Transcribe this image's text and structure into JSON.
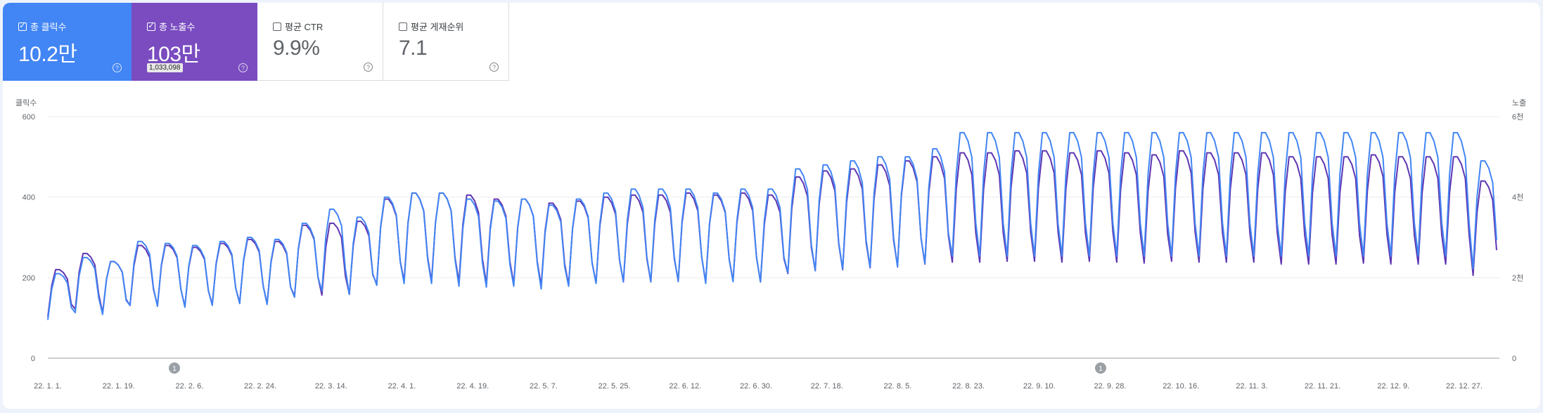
{
  "metrics": [
    {
      "label": "총 클릭수",
      "value": "10.2만",
      "checked": true
    },
    {
      "label": "총 노출수",
      "value": "103만",
      "tooltip": "1,033,098",
      "checked": true
    },
    {
      "label": "평균 CTR",
      "value": "9.9%",
      "checked": false
    },
    {
      "label": "평균 게재순위",
      "value": "7.1",
      "checked": false
    }
  ],
  "help_glyph": "?",
  "check_glyph": "✓",
  "colors": {
    "clicks": "#4285f4",
    "impressions": "#5e35b1",
    "clicks_card": "#4285f4",
    "impressions_card": "#7a4cc0"
  },
  "chart_data": {
    "type": "line",
    "ylabel_left": "클릭수",
    "ylabel_right": "노출",
    "y_ticks_left": [
      "0",
      "200",
      "400",
      "600"
    ],
    "y_ticks_right": [
      "0",
      "2천",
      "4천",
      "6천"
    ],
    "ylim_left": [
      0,
      600
    ],
    "ylim_right": [
      0,
      6000
    ],
    "x_tick_labels": [
      "22. 1. 1.",
      "22. 1. 19.",
      "22. 2. 6.",
      "22. 2. 24.",
      "22. 3. 14.",
      "22. 4. 1.",
      "22. 4. 19.",
      "22. 5. 7.",
      "22. 5. 25.",
      "22. 6. 12.",
      "22. 6. 30.",
      "22. 7. 18.",
      "22. 8. 5.",
      "22. 8. 23.",
      "22. 9. 10.",
      "22. 9. 28.",
      "22. 10. 16.",
      "22. 11. 3.",
      "22. 11. 21.",
      "22. 12. 9.",
      "22. 12. 27."
    ],
    "annotations": [
      {
        "label": "1",
        "date": "22. 2. 6."
      },
      {
        "label": "1",
        "date": "22. 9. 18."
      }
    ],
    "series": [
      {
        "name": "총 클릭수",
        "axis": "left",
        "weekly_peaks": [
          210,
          250,
          240,
          290,
          285,
          280,
          290,
          300,
          295,
          335,
          370,
          350,
          400,
          410,
          410,
          395,
          390,
          395,
          380,
          395,
          410,
          420,
          420,
          420,
          410,
          420,
          420,
          470,
          480,
          490,
          500,
          500,
          520,
          560,
          560,
          560,
          560,
          560,
          560,
          560,
          560,
          560,
          560,
          560,
          560,
          560,
          560,
          560,
          560,
          560,
          560,
          560,
          490
        ],
        "weekday_low": 0.27
      },
      {
        "name": "총 노출수",
        "axis": "right",
        "weekly_peaks": [
          2200,
          2600,
          2400,
          2800,
          2800,
          2750,
          2850,
          2950,
          2900,
          3300,
          3350,
          3400,
          3950,
          4100,
          4100,
          4050,
          3950,
          3950,
          3850,
          3900,
          4000,
          4050,
          4050,
          4100,
          4050,
          4100,
          4050,
          4500,
          4650,
          4700,
          4800,
          4900,
          5000,
          5100,
          5100,
          5150,
          5150,
          5100,
          5150,
          5100,
          5050,
          5150,
          5100,
          5100,
          5100,
          5000,
          5000,
          5000,
          5050,
          5000,
          5000,
          5000,
          4400
        ],
        "weekday_low": 0.29
      }
    ]
  }
}
